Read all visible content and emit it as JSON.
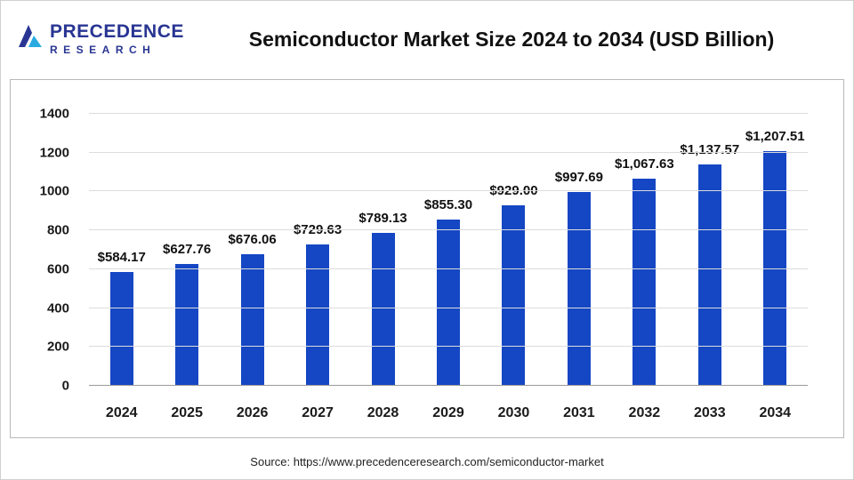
{
  "header": {
    "logo": {
      "line1": "PRECEDENCE",
      "line2": "RESEARCH"
    },
    "title": "Semiconductor Market Size 2024 to 2034 (USD Billion)"
  },
  "footer": {
    "source": "Source: https://www.precedenceresearch.com/semiconductor-market"
  },
  "colors": {
    "bar": "#1547c4",
    "logo": "#283593",
    "gridline": "#dcdcdc",
    "baseline": "#9a9a9a"
  },
  "chart_data": {
    "type": "bar",
    "title": "Semiconductor Market Size 2024 to 2034 (USD Billion)",
    "categories": [
      "2024",
      "2025",
      "2026",
      "2027",
      "2028",
      "2029",
      "2030",
      "2031",
      "2032",
      "2033",
      "2034"
    ],
    "values": [
      584.17,
      627.76,
      676.06,
      729.63,
      789.13,
      855.3,
      929.0,
      997.69,
      1067.63,
      1137.57,
      1207.51
    ],
    "value_labels": [
      "$584.17",
      "$627.76",
      "$676.06",
      "$729.63",
      "$789.13",
      "$855.30",
      "$929.00",
      "$997.69",
      "$1,067.63",
      "$1,137.57",
      "$1,207.51"
    ],
    "xlabel": "",
    "ylabel": "",
    "ylim": [
      0,
      1400
    ],
    "yticks": [
      0,
      200,
      400,
      600,
      800,
      1000,
      1200,
      1400
    ],
    "ytick_labels": [
      "0",
      "200",
      "400",
      "600",
      "800",
      "1000",
      "1200",
      "1400"
    ],
    "grid": true,
    "legend_position": "none",
    "bar_color": "#1547c4"
  }
}
